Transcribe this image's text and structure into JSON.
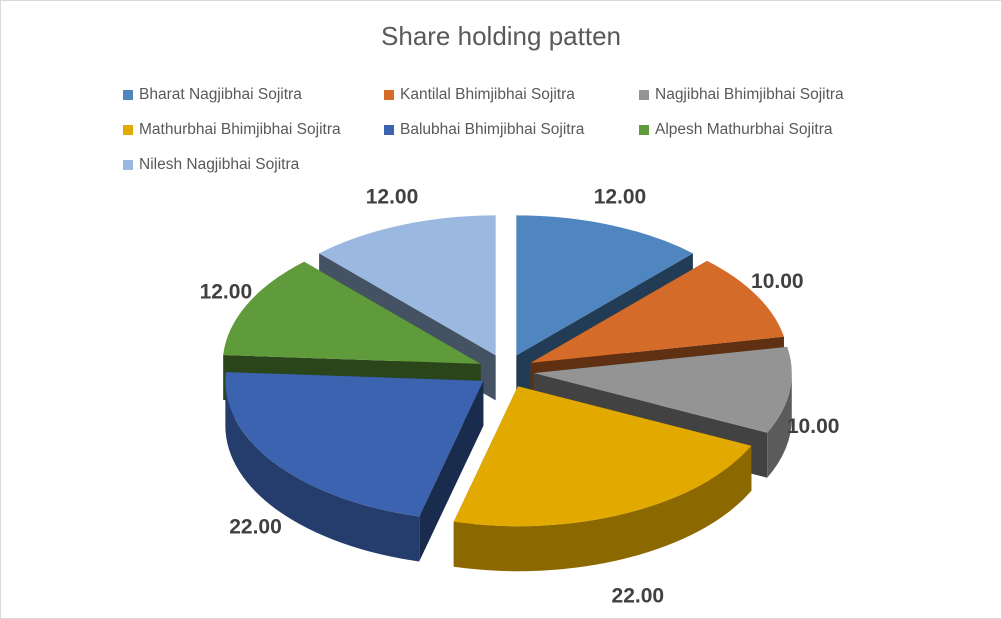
{
  "chart_data": {
    "type": "pie",
    "style": "3d-exploded",
    "title": "Share holding patten",
    "legend_position": "top",
    "categories": [
      "Bharat Nagjibhai Sojitra",
      "Kantilal Bhimjibhai Sojitra",
      "Nagjibhai Bhimjibhai Sojitra",
      "Mathurbhai Bhimjibhai Sojitra",
      "Balubhai Bhimjibhai Sojitra",
      "Alpesh Mathurbhai Sojitra",
      "Nilesh Nagjibhai Sojitra"
    ],
    "values": [
      12,
      10,
      10,
      22,
      22,
      12,
      12
    ],
    "data_labels": [
      "12.00",
      "10.00",
      "10.00",
      "22.00",
      "22.00",
      "12.00",
      "12.00"
    ],
    "colors": [
      "#4f86c0",
      "#d56b28",
      "#949494",
      "#e2a900",
      "#3b63af",
      "#5f9b3a",
      "#9ab8e0"
    ]
  }
}
